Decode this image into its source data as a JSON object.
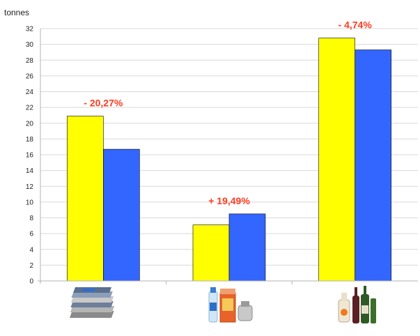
{
  "chart_data": {
    "type": "bar",
    "ylabel": "tonnes",
    "ylim": [
      0,
      32
    ],
    "ytick_step": 2,
    "grid": true,
    "categories": [
      {
        "icon": "newspapers-icon",
        "label": ""
      },
      {
        "icon": "packaging-icon",
        "label": ""
      },
      {
        "icon": "glass-bottles-icon",
        "label": ""
      }
    ],
    "series": [
      {
        "values": [
          20.9,
          7.1,
          30.8
        ],
        "color": "#ffff00"
      },
      {
        "values": [
          16.7,
          8.5,
          29.3
        ],
        "color": "#3366ff"
      }
    ],
    "annotations": [
      "- 20,27%",
      "+ 19,49%",
      "- 4,74%"
    ],
    "colors": {
      "annotation": "#ff3b1f",
      "grid": "#d9d9d9",
      "axis": "#b3b3b3"
    }
  }
}
